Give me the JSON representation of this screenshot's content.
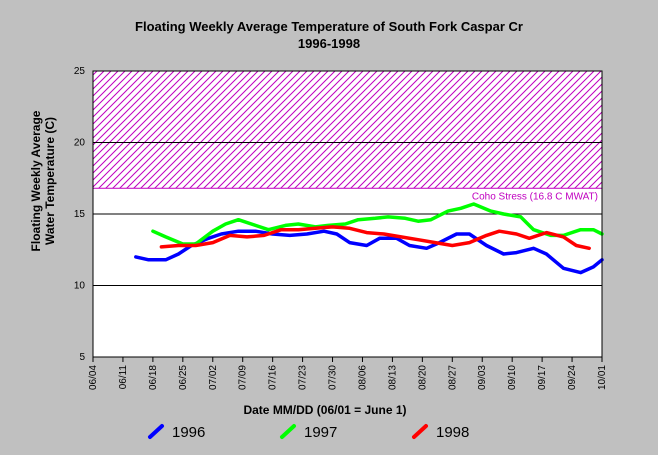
{
  "chart_data": {
    "type": "line",
    "title": "Floating Weekly Average Temperature of South Fork Caspar Cr",
    "subtitle": "1996-1998",
    "xlabel": "Date MM/DD (06/01 = June 1)",
    "ylabel_line1": "Floating Weekly Average",
    "ylabel_line2": "Water Temperature (C)",
    "ylim": [
      5,
      25
    ],
    "yticks": [
      "5",
      "10",
      "15",
      "20",
      "25"
    ],
    "xticks": [
      "06/04",
      "06/11",
      "06/18",
      "06/25",
      "07/02",
      "07/09",
      "07/16",
      "07/23",
      "07/30",
      "08/06",
      "08/13",
      "08/20",
      "08/27",
      "09/03",
      "09/10",
      "09/17",
      "09/24",
      "10/01"
    ],
    "grid": "horizontal",
    "legend_position": "bottom",
    "threshold": {
      "label": "Coho Stress (16.8 C MWAT)",
      "value": 16.8,
      "upper": 25,
      "color": "#c000c0"
    },
    "series": [
      {
        "name": "1996",
        "color": "#0000ff",
        "points": [
          [
            "06/14",
            12.0
          ],
          [
            "06/17",
            11.8
          ],
          [
            "06/21",
            11.8
          ],
          [
            "06/24",
            12.2
          ],
          [
            "06/27",
            12.8
          ],
          [
            "07/01",
            13.3
          ],
          [
            "07/04",
            13.6
          ],
          [
            "07/08",
            13.8
          ],
          [
            "07/12",
            13.8
          ],
          [
            "07/16",
            13.6
          ],
          [
            "07/20",
            13.5
          ],
          [
            "07/24",
            13.6
          ],
          [
            "07/28",
            13.8
          ],
          [
            "07/31",
            13.6
          ],
          [
            "08/03",
            13.0
          ],
          [
            "08/07",
            12.8
          ],
          [
            "08/10",
            13.3
          ],
          [
            "08/14",
            13.3
          ],
          [
            "08/17",
            12.8
          ],
          [
            "08/21",
            12.6
          ],
          [
            "08/24",
            13.0
          ],
          [
            "08/28",
            13.6
          ],
          [
            "08/31",
            13.6
          ],
          [
            "09/04",
            12.8
          ],
          [
            "09/08",
            12.2
          ],
          [
            "09/11",
            12.3
          ],
          [
            "09/15",
            12.6
          ],
          [
            "09/18",
            12.2
          ],
          [
            "09/22",
            11.2
          ],
          [
            "09/26",
            10.9
          ],
          [
            "09/29",
            11.3
          ],
          [
            "10/01",
            11.8
          ]
        ]
      },
      {
        "name": "1997",
        "color": "#00ff00",
        "points": [
          [
            "06/18",
            13.8
          ],
          [
            "06/21",
            13.4
          ],
          [
            "06/25",
            12.9
          ],
          [
            "06/28",
            12.9
          ],
          [
            "07/02",
            13.8
          ],
          [
            "07/05",
            14.3
          ],
          [
            "07/08",
            14.6
          ],
          [
            "07/12",
            14.2
          ],
          [
            "07/15",
            13.9
          ],
          [
            "07/19",
            14.2
          ],
          [
            "07/22",
            14.3
          ],
          [
            "07/26",
            14.1
          ],
          [
            "07/29",
            14.2
          ],
          [
            "08/02",
            14.3
          ],
          [
            "08/05",
            14.6
          ],
          [
            "08/09",
            14.7
          ],
          [
            "08/12",
            14.8
          ],
          [
            "08/16",
            14.7
          ],
          [
            "08/19",
            14.5
          ],
          [
            "08/22",
            14.6
          ],
          [
            "08/26",
            15.2
          ],
          [
            "08/29",
            15.4
          ],
          [
            "09/01",
            15.7
          ],
          [
            "09/05",
            15.2
          ],
          [
            "09/08",
            15.0
          ],
          [
            "09/12",
            14.8
          ],
          [
            "09/15",
            13.9
          ],
          [
            "09/19",
            13.5
          ],
          [
            "09/22",
            13.5
          ],
          [
            "09/26",
            13.9
          ],
          [
            "09/29",
            13.9
          ],
          [
            "10/01",
            13.6
          ]
        ]
      },
      {
        "name": "1998",
        "color": "#ff0000",
        "points": [
          [
            "06/20",
            12.7
          ],
          [
            "06/24",
            12.8
          ],
          [
            "06/28",
            12.8
          ],
          [
            "07/02",
            13.0
          ],
          [
            "07/06",
            13.5
          ],
          [
            "07/10",
            13.4
          ],
          [
            "07/14",
            13.5
          ],
          [
            "07/18",
            13.9
          ],
          [
            "07/22",
            13.9
          ],
          [
            "07/26",
            14.0
          ],
          [
            "07/30",
            14.1
          ],
          [
            "08/03",
            14.0
          ],
          [
            "08/07",
            13.7
          ],
          [
            "08/11",
            13.6
          ],
          [
            "08/15",
            13.4
          ],
          [
            "08/19",
            13.2
          ],
          [
            "08/23",
            13.0
          ],
          [
            "08/27",
            12.8
          ],
          [
            "08/31",
            13.0
          ],
          [
            "09/04",
            13.5
          ],
          [
            "09/07",
            13.8
          ],
          [
            "09/11",
            13.6
          ],
          [
            "09/14",
            13.3
          ],
          [
            "09/18",
            13.7
          ],
          [
            "09/22",
            13.4
          ],
          [
            "09/25",
            12.8
          ],
          [
            "09/28",
            12.6
          ]
        ]
      }
    ]
  }
}
